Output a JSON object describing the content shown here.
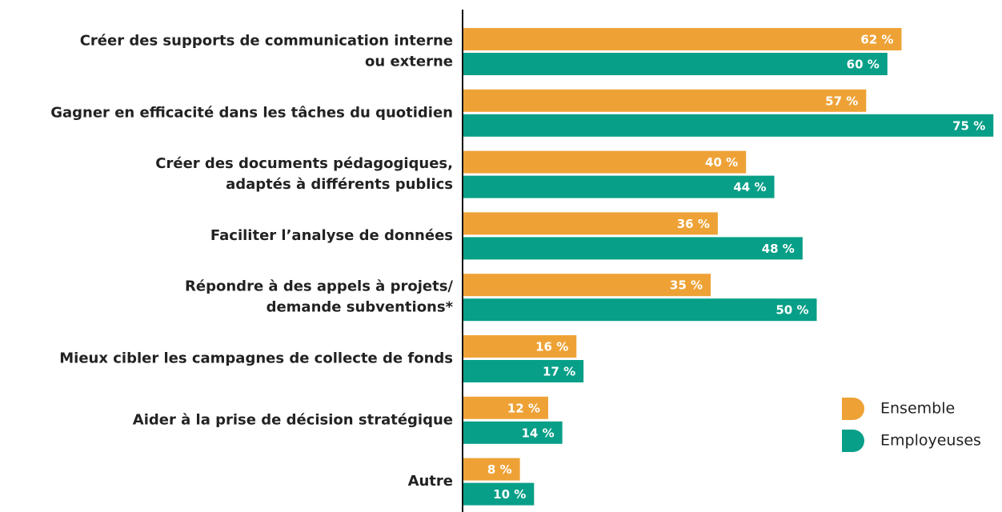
{
  "chart_data": {
    "type": "bar",
    "orientation": "horizontal",
    "categories": [
      [
        "Créer des supports de communication interne",
        "ou externe"
      ],
      [
        "Gagner en efficacité dans les tâches du quotidien"
      ],
      [
        "Créer des documents pédagogiques,",
        "adaptés à différents publics"
      ],
      [
        "Faciliter l’analyse de données"
      ],
      [
        "Répondre à des appels à projets/",
        "demande subventions*"
      ],
      [
        "Mieux cibler les campagnes de collecte de fonds"
      ],
      [
        "Aider à la prise de décision stratégique"
      ],
      [
        "Autre"
      ]
    ],
    "series": [
      {
        "name": "Ensemble",
        "color": "#eea236",
        "values": [
          62,
          57,
          40,
          36,
          35,
          16,
          12,
          8
        ],
        "value_labels": [
          "62 %",
          "57 %",
          "40 %",
          "36 %",
          "35 %",
          "16 %",
          "12 %",
          "8 %"
        ]
      },
      {
        "name": "Employeuses",
        "color": "#079f87",
        "values": [
          60,
          75,
          44,
          48,
          50,
          17,
          14,
          10
        ],
        "value_labels": [
          "60 %",
          "75 %",
          "44 %",
          "48 %",
          "50 %",
          "17 %",
          "14 %",
          "10 %"
        ]
      }
    ],
    "legend": "bottom-right"
  }
}
